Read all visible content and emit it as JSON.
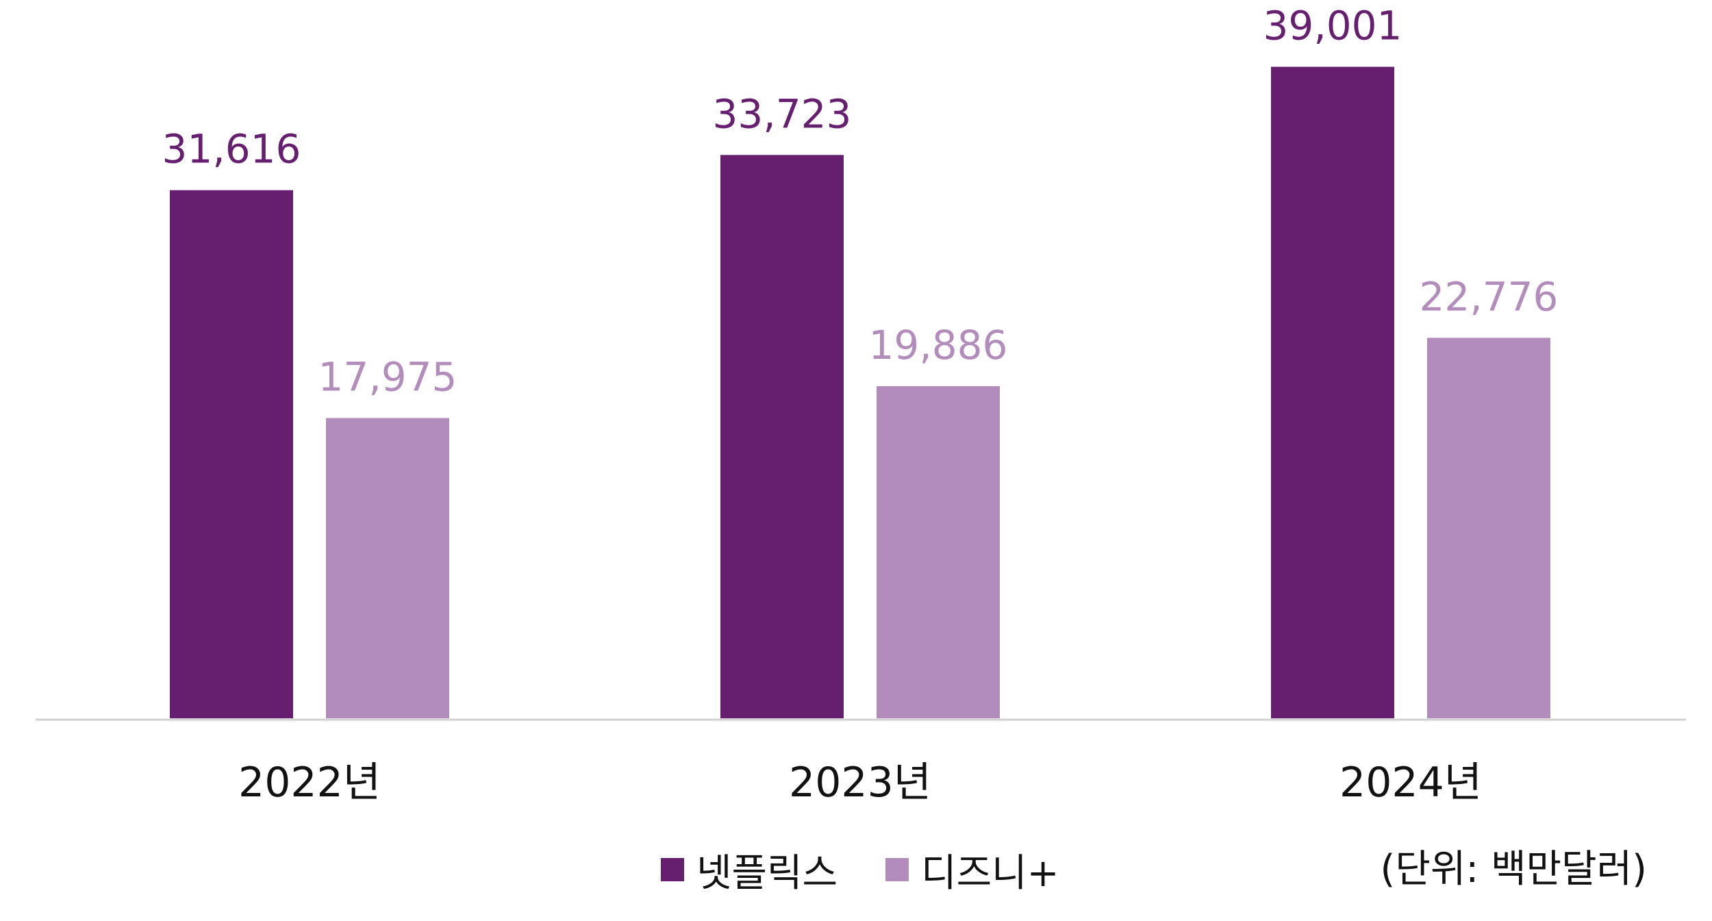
{
  "chart_data": {
    "type": "bar",
    "categories": [
      "2022년",
      "2023년",
      "2024년"
    ],
    "series": [
      {
        "name": "넷플릭스",
        "values": [
          31616,
          33723,
          39001
        ],
        "labels": [
          "31,616",
          "33,723",
          "39,001"
        ],
        "color": "#661f6f"
      },
      {
        "name": "디즈니+",
        "values": [
          17975,
          19886,
          22776
        ],
        "labels": [
          "17,975",
          "19,886",
          "22,776"
        ],
        "color": "#b28cba"
      }
    ],
    "title": "",
    "xlabel": "",
    "ylabel": "",
    "ylim": [
      0,
      43000
    ],
    "grid": false,
    "legend": "bottom-center",
    "baseline_color": "#d0d0d0",
    "axis_label_color": "#111111"
  },
  "unit_note": "(단위: 백만달러)"
}
